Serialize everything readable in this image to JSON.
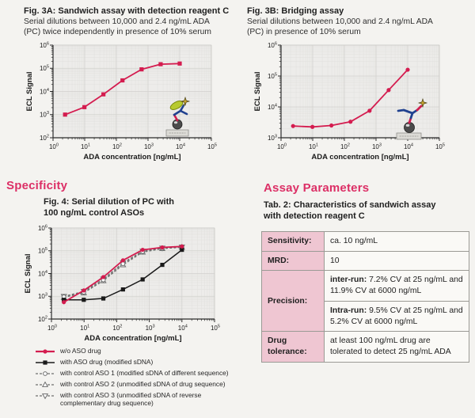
{
  "colors": {
    "heading_pink": "#dc2f66",
    "curve_red": "#d41c4f",
    "curve_black": "#1a1a1a",
    "curve_grey": "#6e6e6e",
    "table_label_bg": "#efc6d2",
    "plot_bg": "#edecea"
  },
  "fig3a": {
    "title": "Fig. 3A: Sandwich assay with detection reagent C",
    "subtitle": [
      "Serial dilutions between 10,000 and 2.4 ng/mL ADA",
      "(PC) twice independently in presence of 10% serum"
    ]
  },
  "fig3b": {
    "title": "Fig. 3B: Bridging assay",
    "subtitle": [
      "Serial dilutions between 10,000 and 2.4 ng/mL ADA",
      "(PC) in presence of 10% serum"
    ]
  },
  "specificity": {
    "heading": "Specificity",
    "fig4_title": [
      "Fig. 4: Serial dilution of PC with",
      "100 ng/mL control ASOs"
    ]
  },
  "assay_parameters": {
    "heading": "Assay Parameters",
    "tab2_title": [
      "Tab. 2: Characteristics of sandwich assay",
      "with detection reagent C"
    ],
    "table": {
      "rows": [
        {
          "label": "Sensitivity:",
          "value": "ca. 10 ng/mL"
        },
        {
          "label": "MRD:",
          "value": "10"
        },
        {
          "label": "Precision:",
          "subrows": [
            {
              "lead": "inter-run:",
              "text": " 7.2% CV at 25 ng/mL and 11.9% CV at 6000 ng/mL"
            },
            {
              "lead": "Intra-run:",
              "text": " 9.5% CV at 25 ng/mL and 5.2% CV at 6000 ng/mL"
            }
          ]
        },
        {
          "label": "Drug tolerance:",
          "value": "at least 100 ng/mL drug are tolerated to detect 25 ng/mL ADA"
        }
      ]
    }
  },
  "legend": {
    "items": [
      {
        "label": "w/o ASO drug",
        "marker": "circle-filled",
        "color": "#d41c4f",
        "dash": false,
        "lw": 2.2
      },
      {
        "label": "with ASO drug (modified sDNA)",
        "marker": "square-filled",
        "color": "#1a1a1a",
        "dash": false,
        "lw": 1.6
      },
      {
        "label": "with control ASO 1 (modified sDNA of different sequence)",
        "marker": "circle-open",
        "color": "#6e6e6e",
        "dash": true,
        "lw": 1.2
      },
      {
        "label": "with control ASO 2 (unmodified sDNA of drug sequence)",
        "marker": "triangle-open",
        "color": "#6e6e6e",
        "dash": true,
        "lw": 1.2
      },
      {
        "label": "with control ASO 3 (unmodified sDNA of reverse complementary drug sequence)",
        "marker": "invtriangle-open",
        "color": "#6e6e6e",
        "dash": true,
        "lw": 1.2
      }
    ]
  },
  "chart_data": [
    {
      "id": "fig3a",
      "type": "line",
      "caption": "Fig. 3A: Sandwich assay with detection reagent C",
      "xlabel": "ADA concentration [ng/mL]",
      "ylabel": "ECL Signal",
      "xscale": "log",
      "yscale": "log",
      "xlog": [
        0,
        5
      ],
      "ylog": [
        2,
        6
      ],
      "x_ticks": [
        "10^0",
        "10^1",
        "10^2",
        "10^3",
        "10^4",
        "10^5"
      ],
      "y_ticks": [
        "10^2",
        "10^3",
        "10^4",
        "10^5",
        "10^6"
      ],
      "grid": true,
      "icon": "sandwich",
      "x": [
        2.4,
        9.8,
        39,
        156,
        625,
        2500,
        10000
      ],
      "series": [
        {
          "name": "ADA (PC) serial dilution",
          "color": "#d41c4f",
          "marker": "square-filled",
          "dash": false,
          "lw": 1.8,
          "values": [
            1000,
            2100,
            7500,
            30000,
            90000,
            150000,
            160000
          ]
        }
      ]
    },
    {
      "id": "fig3b",
      "type": "line",
      "caption": "Fig. 3B: Bridging assay",
      "xlabel": "ADA concentration [ng/mL]",
      "ylabel": "ECL Signal",
      "xscale": "log",
      "yscale": "log",
      "xlog": [
        0,
        5
      ],
      "ylog": [
        3,
        6
      ],
      "x_ticks": [
        "10^0",
        "10^1",
        "10^2",
        "10^3",
        "10^4",
        "10^5"
      ],
      "y_ticks": [
        "10^3",
        "10^4",
        "10^5",
        "10^6"
      ],
      "grid": true,
      "icon": "bridging",
      "x": [
        2.4,
        9.8,
        39,
        156,
        625,
        2500,
        10000
      ],
      "series": [
        {
          "name": "ADA (PC) serial dilution",
          "color": "#d41c4f",
          "marker": "circle-filled",
          "dash": false,
          "lw": 1.8,
          "values": [
            2400,
            2250,
            2500,
            3300,
            7500,
            35000,
            160000
          ]
        }
      ]
    },
    {
      "id": "fig4",
      "type": "line",
      "caption": "Fig. 4: Serial dilution of PC with 100 ng/mL control ASOs",
      "xlabel": "ADA concentration [ng/mL]",
      "ylabel": "ECL Signal",
      "xscale": "log",
      "yscale": "log",
      "xlog": [
        0,
        5
      ],
      "ylog": [
        2,
        6
      ],
      "x_ticks": [
        "10^0",
        "10^1",
        "10^2",
        "10^3",
        "10^4",
        "10^5"
      ],
      "y_ticks": [
        "10^2",
        "10^3",
        "10^4",
        "10^5",
        "10^6"
      ],
      "grid": true,
      "icon": null,
      "x": [
        2.4,
        9.8,
        39,
        156,
        625,
        2500,
        10000
      ],
      "series": [
        {
          "name": "w/o ASO drug",
          "color": "#d41c4f",
          "marker": "circle-filled",
          "dash": false,
          "lw": 1.8,
          "values": [
            550,
            1800,
            7000,
            38000,
            110000,
            140000,
            155000
          ]
        },
        {
          "name": "with ASO drug (modified sDNA)",
          "color": "#1a1a1a",
          "marker": "square-filled",
          "dash": false,
          "lw": 1.5,
          "values": [
            700,
            700,
            800,
            2000,
            5500,
            24000,
            110000
          ]
        },
        {
          "name": "with control ASO 1 (modified sDNA of different sequence)",
          "color": "#6e6e6e",
          "marker": "circle-open",
          "dash": true,
          "lw": 1.1,
          "values": [
            950,
            1500,
            5200,
            27000,
            92000,
            128000,
            145000
          ]
        },
        {
          "name": "with control ASO 2 (unmodified sDNA of drug sequence)",
          "color": "#6e6e6e",
          "marker": "triangle-open",
          "dash": true,
          "lw": 1.1,
          "values": [
            880,
            1400,
            4800,
            24000,
            86000,
            124000,
            141000
          ]
        },
        {
          "name": "with control ASO 3 (unmodified sDNA of reverse complementary drug sequence)",
          "color": "#6e6e6e",
          "marker": "invtriangle-open",
          "dash": true,
          "lw": 1.1,
          "values": [
            1000,
            1650,
            5800,
            30000,
            97000,
            132000,
            148000
          ]
        }
      ]
    }
  ]
}
